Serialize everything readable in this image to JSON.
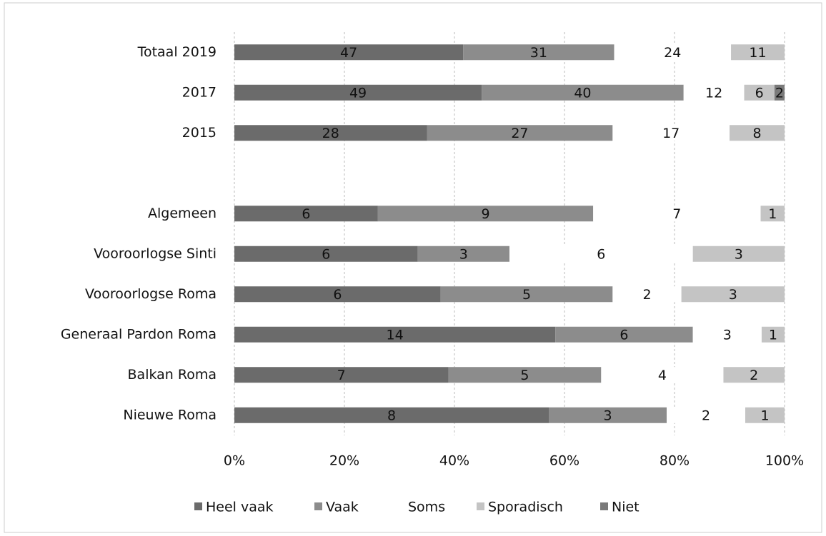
{
  "chart_data": {
    "type": "bar",
    "orientation": "horizontal",
    "stacked": "percent",
    "categories": [
      "Totaal 2019",
      "2017",
      "2015",
      null,
      "Algemeen",
      "Vooroorlogse Sinti",
      "Vooroorlogse Roma",
      "Generaal Pardon Roma",
      "Balkan Roma",
      "Nieuwe Roma"
    ],
    "series": [
      {
        "name": "Heel vaak",
        "color": "#6b6b6b",
        "values": [
          47,
          49,
          28,
          null,
          6,
          6,
          6,
          14,
          7,
          8
        ]
      },
      {
        "name": "Vaak",
        "color": "#8c8c8c",
        "values": [
          31,
          40,
          27,
          null,
          9,
          3,
          5,
          6,
          5,
          3
        ]
      },
      {
        "name": "Soms",
        "color": "#ffffff",
        "values": [
          24,
          12,
          17,
          null,
          7,
          6,
          2,
          3,
          4,
          2
        ]
      },
      {
        "name": "Sporadisch",
        "color": "#c4c4c4",
        "values": [
          11,
          6,
          8,
          null,
          1,
          3,
          3,
          1,
          2,
          1
        ]
      },
      {
        "name": "Niet",
        "color": "#7a7a7a",
        "values": [
          null,
          2,
          null,
          null,
          null,
          null,
          null,
          null,
          null,
          null
        ]
      }
    ],
    "xlim": [
      0,
      100
    ],
    "xticks": [
      {
        "value": 0,
        "label": "0%"
      },
      {
        "value": 20,
        "label": "20%"
      },
      {
        "value": 40,
        "label": "40%"
      },
      {
        "value": 60,
        "label": "60%"
      },
      {
        "value": 80,
        "label": "80%"
      },
      {
        "value": 100,
        "label": "100%"
      }
    ],
    "grid": true,
    "legend": "bottom"
  }
}
